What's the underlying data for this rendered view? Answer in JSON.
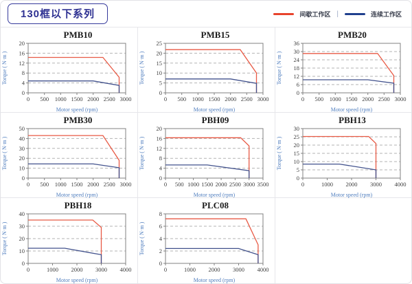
{
  "header": {
    "title": "130框以下系列",
    "legend_separator": "|",
    "legend": [
      {
        "label": "间歇工作区",
        "color": "#e8432c"
      },
      {
        "label": "连续工作区",
        "color": "#1f3f8d"
      }
    ]
  },
  "colors": {
    "intermittent_line": "#e85a45",
    "continuous_line": "#41518c",
    "grid_line": "#b3b3b3",
    "plot_border": "#808080",
    "tick_label": "#3d3d3d",
    "axis_label": "#4f7dbe"
  },
  "chart_data": [
    {
      "type": "line",
      "title": "PMB10",
      "xlabel": "Motor speed (rpm)",
      "ylabel": "Torque ( N·m )",
      "xlim": [
        0,
        3000
      ],
      "xstep": 500,
      "ylim": [
        0,
        20
      ],
      "ystep": 4,
      "grid": "dashed-horizontal",
      "series": [
        {
          "name": "间歇工作区",
          "color": "#e85a45",
          "points": [
            [
              0,
              14.3
            ],
            [
              2300,
              14.3
            ],
            [
              2800,
              6.3
            ],
            [
              2800,
              0
            ]
          ]
        },
        {
          "name": "连续工作区",
          "color": "#41518c",
          "points": [
            [
              0,
              4.8
            ],
            [
              2000,
              4.8
            ],
            [
              2800,
              3
            ],
            [
              2800,
              0
            ]
          ]
        }
      ]
    },
    {
      "type": "line",
      "title": "PMB15",
      "xlabel": "Motor speed (rpm)",
      "ylabel": "Torque ( N·m )",
      "xlim": [
        0,
        3000
      ],
      "xstep": 500,
      "ylim": [
        0,
        25
      ],
      "ystep": 5,
      "grid": "dashed-horizontal",
      "series": [
        {
          "name": "间歇工作区",
          "color": "#e85a45",
          "points": [
            [
              0,
              21.8
            ],
            [
              2300,
              21.8
            ],
            [
              2800,
              10
            ],
            [
              2800,
              0
            ]
          ]
        },
        {
          "name": "连续工作区",
          "color": "#41518c",
          "points": [
            [
              0,
              7
            ],
            [
              2000,
              7
            ],
            [
              2800,
              4.8
            ],
            [
              2800,
              0
            ]
          ]
        }
      ]
    },
    {
      "type": "line",
      "title": "PMB20",
      "xlabel": "Motor speed (rpm)",
      "ylabel": "Torque ( N·m )",
      "xlim": [
        0,
        3000
      ],
      "xstep": 500,
      "ylim": [
        0,
        36
      ],
      "ystep": 6,
      "grid": "dashed-horizontal",
      "series": [
        {
          "name": "间歇工作区",
          "color": "#e85a45",
          "points": [
            [
              0,
              28.6
            ],
            [
              2300,
              28.6
            ],
            [
              2800,
              12.5
            ],
            [
              2800,
              0
            ]
          ]
        },
        {
          "name": "连续工作区",
          "color": "#41518c",
          "points": [
            [
              0,
              9.5
            ],
            [
              2000,
              9.5
            ],
            [
              2800,
              7
            ],
            [
              2800,
              0
            ]
          ]
        }
      ]
    },
    {
      "type": "line",
      "title": "PMB30",
      "xlabel": "Motor speed (rpm)",
      "ylabel": "Torque ( N·m )",
      "xlim": [
        0,
        3000
      ],
      "xstep": 500,
      "ylim": [
        0,
        50
      ],
      "ystep": 10,
      "grid": "dashed-horizontal",
      "series": [
        {
          "name": "间歇工作区",
          "color": "#e85a45",
          "points": [
            [
              0,
              43
            ],
            [
              2300,
              43
            ],
            [
              2800,
              18
            ],
            [
              2800,
              0
            ]
          ]
        },
        {
          "name": "连续工作区",
          "color": "#41518c",
          "points": [
            [
              0,
              14.3
            ],
            [
              2000,
              14.3
            ],
            [
              2800,
              10.5
            ],
            [
              2800,
              0
            ]
          ]
        }
      ]
    },
    {
      "type": "line",
      "title": "PBH09",
      "xlabel": "Motor speed (rpm)",
      "ylabel": "Torque ( N·m )",
      "xlim": [
        0,
        3500
      ],
      "xstep": 500,
      "ylim": [
        0,
        20
      ],
      "ystep": 4,
      "grid": "dashed-horizontal",
      "series": [
        {
          "name": "间歇工作区",
          "color": "#e85a45",
          "points": [
            [
              0,
              16.3
            ],
            [
              2700,
              16.3
            ],
            [
              3000,
              13
            ],
            [
              3000,
              0
            ]
          ]
        },
        {
          "name": "连续工作区",
          "color": "#41518c",
          "points": [
            [
              0,
              5.3
            ],
            [
              1500,
              5.3
            ],
            [
              3000,
              3
            ],
            [
              3000,
              0
            ]
          ]
        }
      ]
    },
    {
      "type": "line",
      "title": "PBH13",
      "xlabel": "Motor speed (rpm)",
      "ylabel": "Torque ( N·m )",
      "xlim": [
        0,
        4000
      ],
      "xstep": 1000,
      "ylim": [
        0,
        30
      ],
      "ystep": 5,
      "grid": "dashed-horizontal",
      "series": [
        {
          "name": "间歇工作区",
          "color": "#e85a45",
          "points": [
            [
              0,
              25.2
            ],
            [
              2700,
              25.2
            ],
            [
              3000,
              21
            ],
            [
              3000,
              0
            ]
          ]
        },
        {
          "name": "连续工作区",
          "color": "#41518c",
          "points": [
            [
              0,
              8.5
            ],
            [
              1500,
              8.5
            ],
            [
              3000,
              5
            ],
            [
              3000,
              0
            ]
          ]
        }
      ]
    },
    {
      "type": "line",
      "title": "PBH18",
      "xlabel": "Motor speed (rpm)",
      "ylabel": "Torque ( N·m )",
      "xlim": [
        0,
        4000
      ],
      "xstep": 1000,
      "ylim": [
        0,
        40
      ],
      "ystep": 10,
      "grid": "dashed-horizontal",
      "series": [
        {
          "name": "间歇工作区",
          "color": "#e85a45",
          "points": [
            [
              0,
              35
            ],
            [
              2650,
              35
            ],
            [
              3000,
              29
            ],
            [
              3000,
              0
            ]
          ]
        },
        {
          "name": "连续工作区",
          "color": "#41518c",
          "points": [
            [
              0,
              12.2
            ],
            [
              1500,
              12.2
            ],
            [
              3000,
              7
            ],
            [
              3000,
              0
            ]
          ]
        }
      ]
    },
    {
      "type": "line",
      "title": "PLC08",
      "xlabel": "Motor speed (rpm)",
      "ylabel": "Torque ( N·m )",
      "xlim": [
        0,
        4000
      ],
      "xstep": 1000,
      "ylim": [
        0,
        8
      ],
      "ystep": 2,
      "grid": "dashed-horizontal",
      "series": [
        {
          "name": "间歇工作区",
          "color": "#e85a45",
          "points": [
            [
              0,
              7.2
            ],
            [
              3300,
              7.2
            ],
            [
              3800,
              3
            ],
            [
              3800,
              0
            ]
          ]
        },
        {
          "name": "连续工作区",
          "color": "#41518c",
          "points": [
            [
              0,
              2.4
            ],
            [
              3000,
              2.4
            ],
            [
              3800,
              1.4
            ],
            [
              3800,
              0
            ]
          ]
        }
      ]
    }
  ]
}
